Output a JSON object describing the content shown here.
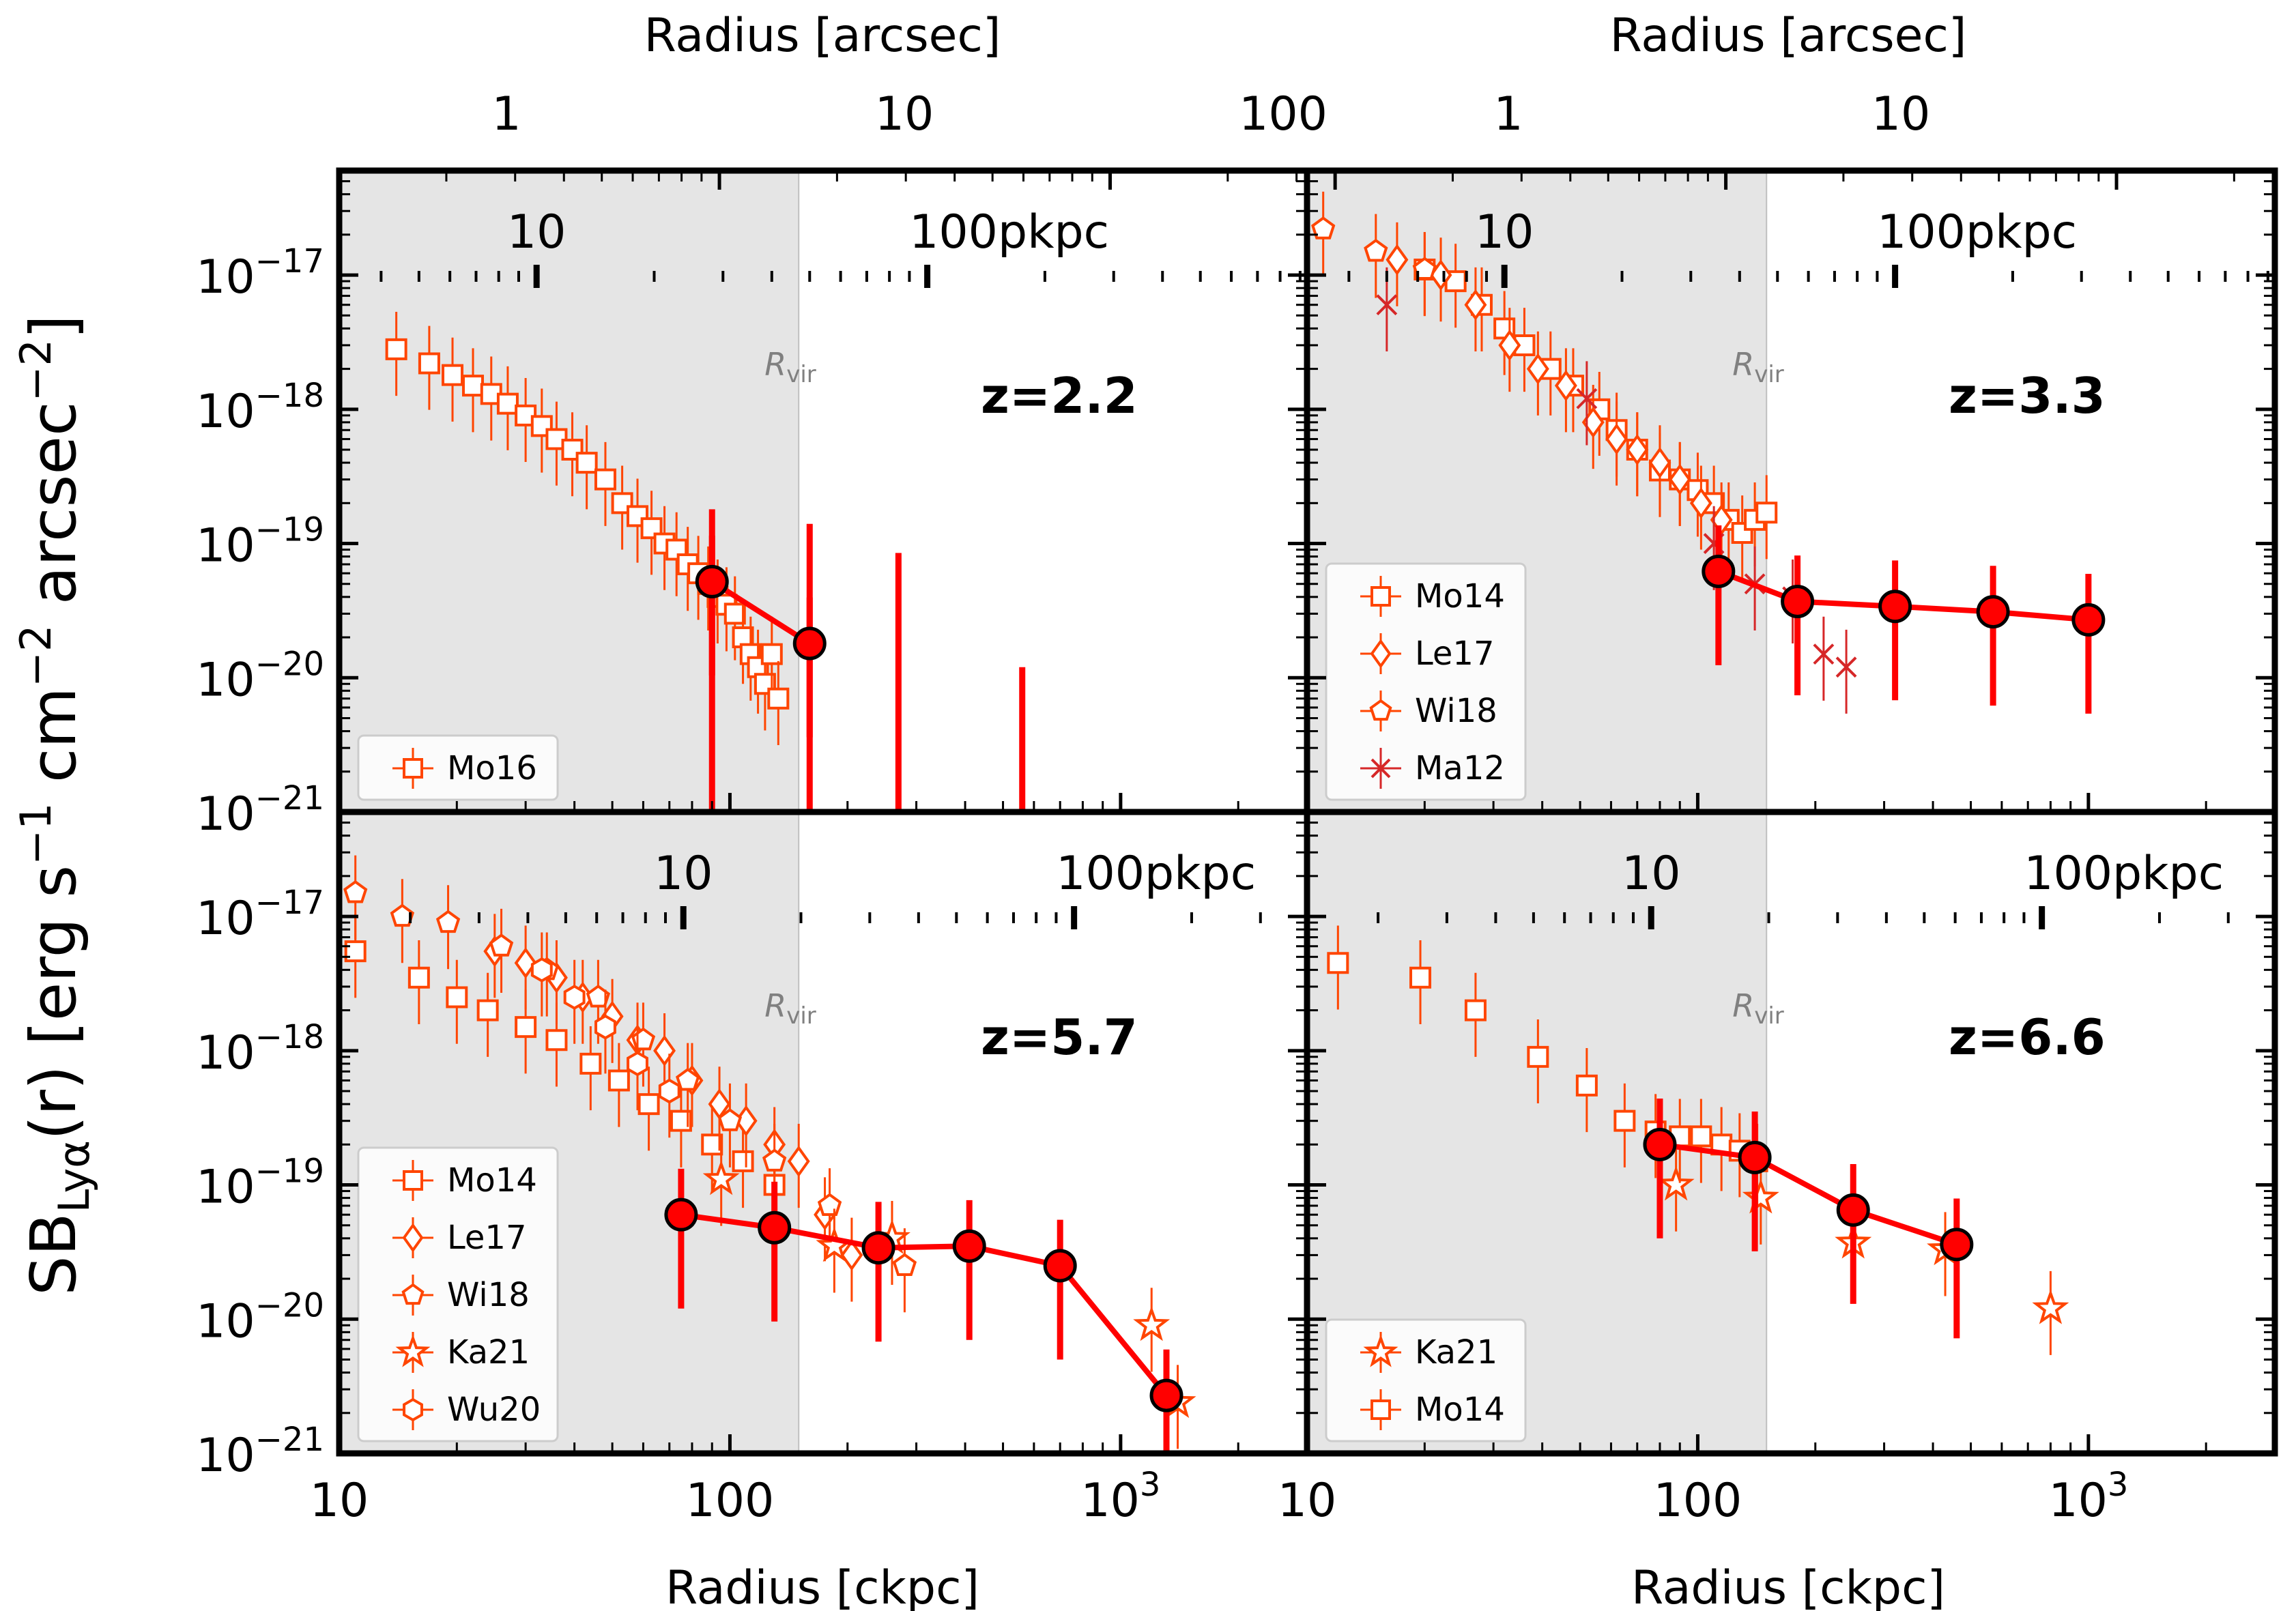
{
  "figure": {
    "ylabel": "SB",
    "ylabel_sub": "Lyα",
    "ylabel_rest": "(r) [erg s",
    "ylabel_sup1": "−1",
    "ylabel_rest2": " cm",
    "ylabel_sup2": "−2",
    "ylabel_rest3": " arcsec",
    "ylabel_sup3": "−2",
    "ylabel_end": "]",
    "xlabel_bottom": "Radius [ckpc]",
    "xlabel_top": "Radius [arcsec]",
    "rvir_label": "R",
    "rvir_sub": "vir",
    "y_tick_labels": [
      "10",
      "10",
      "10",
      "10",
      "10"
    ],
    "y_tick_exps": [
      "−17",
      "−18",
      "−19",
      "−20",
      "−21"
    ],
    "x_tick_labels": [
      "10",
      "100",
      "10"
    ],
    "x_tick_exp": "3",
    "arcsec_ticks_left": [
      "1",
      "10",
      "100"
    ],
    "arcsec_ticks_right": [
      "1",
      "10"
    ],
    "pkpc_labels": [
      "10",
      "100pkpc"
    ]
  },
  "chart_data": [
    {
      "type": "scatter",
      "panel": "top-left",
      "redshift_label": "z=2.2",
      "xscale": "log",
      "yscale": "log",
      "xlim": [
        10,
        3000
      ],
      "ylim": [
        1e-21,
        6e-17
      ],
      "rvir": 150,
      "legend": [
        "Mo16"
      ],
      "observations": [
        {
          "name": "Mo16",
          "marker": "square",
          "x": [
            14,
            17,
            19.5,
            22,
            24.5,
            27,
            30,
            33,
            36,
            39.5,
            43,
            48,
            53,
            58,
            63,
            68,
            73,
            78,
            83,
            88,
            93,
            98,
            103,
            108,
            113,
            118,
            123,
            128,
            133
          ],
          "y": [
            2.8e-18,
            2.2e-18,
            1.8e-18,
            1.5e-18,
            1.3e-18,
            1.1e-18,
            9e-19,
            7.5e-19,
            6e-19,
            5e-19,
            4e-19,
            3e-19,
            2e-19,
            1.6e-19,
            1.3e-19,
            1e-19,
            9e-20,
            7e-20,
            6e-20,
            5e-20,
            4e-20,
            3.5e-20,
            3e-20,
            2e-20,
            1.5e-20,
            1.2e-20,
            9e-21,
            1.5e-20,
            7e-21
          ]
        }
      ],
      "simulation": {
        "x": [
          90,
          160
        ],
        "y": [
          5.2e-20,
          1.8e-20
        ]
      },
      "simulation_upper_errors": [
        {
          "x": 90,
          "y": 1.8e-19
        },
        {
          "x": 160,
          "y": 1.4e-19
        },
        {
          "x": 270,
          "y": 8.5e-20
        },
        {
          "x": 560,
          "y": 1.2e-20
        }
      ]
    },
    {
      "type": "scatter",
      "panel": "top-right",
      "redshift_label": "z=3.3",
      "xscale": "log",
      "yscale": "log",
      "xlim": [
        10,
        3000
      ],
      "ylim": [
        1e-21,
        6e-17
      ],
      "rvir": 150,
      "legend": [
        "Mo14",
        "Le17",
        "Wi18",
        "Ma12"
      ],
      "observations": [
        {
          "name": "Mo14",
          "marker": "square",
          "x": [
            20,
            24,
            28,
            32,
            36,
            42,
            48,
            56,
            62,
            70,
            80,
            90,
            100,
            110,
            120,
            130,
            140,
            150
          ],
          "y": [
            1.1e-17,
            9e-18,
            6e-18,
            4e-18,
            3e-18,
            2e-18,
            1.5e-18,
            1e-18,
            7e-19,
            5e-19,
            3.5e-19,
            3e-19,
            2.5e-19,
            2e-19,
            1.5e-19,
            1.2e-19,
            1.5e-19,
            1.7e-19
          ]
        },
        {
          "name": "Le17",
          "marker": "diamond",
          "x": [
            17,
            22,
            27,
            33,
            39,
            46,
            54,
            62,
            70,
            80,
            90,
            102,
            115
          ],
          "y": [
            1.3e-17,
            1e-17,
            6e-18,
            3e-18,
            2e-18,
            1.5e-18,
            8e-19,
            6e-19,
            5e-19,
            4e-19,
            3e-19,
            2e-19,
            1.5e-19
          ]
        },
        {
          "name": "Wi18",
          "marker": "pentagon",
          "x": [
            11,
            15,
            20
          ],
          "y": [
            2.2e-17,
            1.5e-17,
            1.1e-17
          ]
        },
        {
          "name": "Ma12",
          "marker": "x",
          "x": [
            16,
            52,
            110,
            140,
            175,
            210,
            240
          ],
          "y": [
            6e-18,
            1.2e-18,
            1e-19,
            5e-20,
            4e-20,
            1.5e-20,
            1.2e-20
          ]
        }
      ],
      "simulation": {
        "x": [
          113,
          180,
          320,
          570,
          1000
        ],
        "y": [
          6.2e-20,
          3.7e-20,
          3.4e-20,
          3.1e-20,
          2.7e-20
        ]
      }
    },
    {
      "type": "scatter",
      "panel": "bottom-left",
      "redshift_label": "z=5.7",
      "xscale": "log",
      "yscale": "log",
      "xlim": [
        10,
        3000
      ],
      "ylim": [
        1e-21,
        6e-17
      ],
      "rvir": 150,
      "legend": [
        "Mo14",
        "Le17",
        "Wi18",
        "Ka21",
        "Wu20"
      ],
      "observations": [
        {
          "name": "Mo14",
          "marker": "square",
          "x": [
            11,
            16,
            20,
            24,
            30,
            36,
            44,
            52,
            62,
            75,
            90,
            108,
            130
          ],
          "y": [
            5.5e-18,
            3.5e-18,
            2.5e-18,
            2e-18,
            1.5e-18,
            1.2e-18,
            8e-19,
            6e-19,
            4e-19,
            3e-19,
            2e-19,
            1.5e-19,
            1e-19
          ]
        },
        {
          "name": "Le17",
          "marker": "diamond",
          "x": [
            25,
            30,
            36,
            42,
            50,
            58,
            68,
            80,
            94,
            110,
            130,
            150,
            175,
            205
          ],
          "y": [
            5.5e-18,
            4.5e-18,
            3.5e-18,
            2.5e-18,
            1.8e-18,
            1.2e-18,
            1e-18,
            6e-19,
            4e-19,
            3e-19,
            2e-19,
            1.5e-19,
            6e-20,
            3e-20
          ]
        },
        {
          "name": "Wi18",
          "marker": "pentagon",
          "x": [
            11,
            14.5,
            19,
            26,
            34,
            46,
            60,
            78,
            100,
            130,
            180,
            280
          ],
          "y": [
            1.5e-17,
            1e-17,
            9e-18,
            6e-18,
            4e-18,
            2.5e-18,
            1.2e-18,
            6e-19,
            3e-19,
            1.5e-19,
            7e-20,
            2.5e-20
          ]
        },
        {
          "name": "Ka21",
          "marker": "star",
          "x": [
            95,
            185,
            260,
            1200,
            1400
          ],
          "y": [
            1.1e-19,
            3.5e-20,
            4e-20,
            9e-21,
            2.4e-21
          ]
        },
        {
          "name": "Wu20",
          "marker": "hexagon",
          "x": [
            33,
            40,
            48,
            58,
            70
          ],
          "y": [
            4e-18,
            2.5e-18,
            1.5e-18,
            8e-19,
            5e-19
          ]
        }
      ],
      "simulation": {
        "x": [
          75,
          130,
          240,
          410,
          700,
          1310
        ],
        "y": [
          6e-20,
          4.8e-20,
          3.4e-20,
          3.5e-20,
          2.5e-20,
          2.7e-21
        ]
      }
    },
    {
      "type": "scatter",
      "panel": "bottom-right",
      "redshift_label": "z=6.6",
      "xscale": "log",
      "yscale": "log",
      "xlim": [
        10,
        3000
      ],
      "ylim": [
        1e-21,
        6e-17
      ],
      "rvir": 150,
      "legend": [
        "Ka21",
        "Mo14"
      ],
      "observations": [
        {
          "name": "Ka21",
          "marker": "star",
          "x": [
            88,
            145,
            250,
            430,
            800
          ],
          "y": [
            1e-19,
            8e-20,
            3.7e-20,
            3.3e-20,
            1.2e-20
          ]
        },
        {
          "name": "Mo14",
          "marker": "square",
          "x": [
            12,
            19.5,
            27,
            39,
            52,
            65,
            78,
            90,
            102,
            115,
            128,
            142
          ],
          "y": [
            4.5e-18,
            3.5e-18,
            2e-18,
            9e-19,
            5.5e-19,
            3e-19,
            2.5e-19,
            2.3e-19,
            2.3e-19,
            2e-19,
            1.8e-19,
            1.5e-19
          ]
        }
      ],
      "simulation": {
        "x": [
          80,
          140,
          250,
          460
        ],
        "y": [
          2e-19,
          1.6e-19,
          6.5e-20,
          3.6e-20
        ]
      }
    }
  ],
  "colors": {
    "simulation": "#ff0000",
    "observation": "#ff4500",
    "ma12": "#d62728",
    "shade": "#e5e5e5",
    "rvir_line": "#c0c0c0"
  }
}
